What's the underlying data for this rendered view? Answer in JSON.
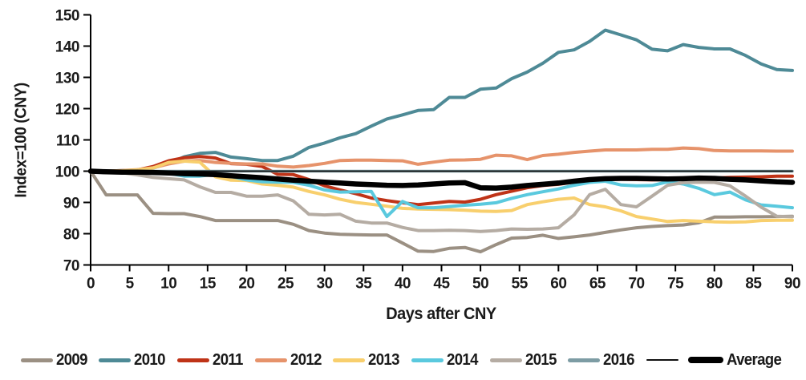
{
  "chart_data": {
    "type": "line",
    "title": "",
    "xlabel": "Days after CNY",
    "ylabel": "Index=100 (CNY)",
    "xlim": [
      0,
      90
    ],
    "ylim": [
      70,
      150
    ],
    "x_ticks": [
      0,
      5,
      10,
      15,
      20,
      25,
      30,
      35,
      40,
      45,
      50,
      55,
      60,
      65,
      70,
      75,
      80,
      85,
      90
    ],
    "y_ticks": [
      70,
      80,
      90,
      100,
      110,
      120,
      130,
      140,
      150
    ],
    "x_day_step": 2,
    "grid": false,
    "legend_position": "bottom",
    "axis_color": "#000000",
    "series": [
      {
        "label": "2009",
        "name": "series-2009",
        "color": "#9b9083",
        "width": 4,
        "values": [
          100,
          92.4,
          92.4,
          92.4,
          86.5,
          86.4,
          86.4,
          85.5,
          84.2,
          84.2,
          84.2,
          84.2,
          84.2,
          83,
          81,
          80.2,
          79.8,
          79.7,
          79.6,
          79.6,
          77,
          74.4,
          74.3,
          75.3,
          75.6,
          74.2,
          76.5,
          78.6,
          78.8,
          79.5,
          78.5,
          79,
          79.6,
          80.4,
          81.2,
          81.9,
          82.3,
          82.6,
          82.8,
          83.5,
          85.3,
          85.3,
          85.4,
          85.4,
          85.5,
          85.6
        ]
      },
      {
        "label": "2010",
        "name": "series-2010",
        "color": "#4e8a96",
        "width": 4,
        "values": [
          100,
          100,
          100.2,
          100.3,
          101,
          102.5,
          104.6,
          105.7,
          106,
          104.5,
          104,
          103.4,
          103.4,
          104.8,
          107.6,
          109,
          110.7,
          112,
          114.4,
          116.7,
          118,
          119.4,
          119.7,
          123.6,
          123.6,
          126.2,
          126.6,
          129.6,
          131.7,
          134.5,
          138,
          138.8,
          141.5,
          145.1,
          143.6,
          142,
          139,
          138.5,
          140.5,
          139.6,
          139.1,
          139.1,
          137,
          134.3,
          132.5,
          132.2
        ]
      },
      {
        "label": "2011",
        "name": "series-2011",
        "color": "#bf3317",
        "width": 4,
        "values": [
          100,
          99.9,
          100,
          100.4,
          101.5,
          103.3,
          104.3,
          104.7,
          104.2,
          102.4,
          102.2,
          101.5,
          99,
          98.9,
          97.3,
          95.3,
          94,
          92.8,
          91.4,
          90.6,
          89.9,
          89.3,
          89.8,
          90.3,
          90.1,
          91,
          92.5,
          93.6,
          94.7,
          95.4,
          95.8,
          96.5,
          97.2,
          97.4,
          97.4,
          97.3,
          97.2,
          97.3,
          97.4,
          97.6,
          97.8,
          98,
          98.1,
          98.2,
          98.4,
          98.4
        ]
      },
      {
        "label": "2012",
        "name": "series-2012",
        "color": "#e6936b",
        "width": 4,
        "values": [
          100,
          100,
          100.2,
          100.5,
          101.1,
          102.3,
          103.2,
          103.4,
          102.8,
          102.5,
          102.3,
          102.3,
          101.6,
          101.3,
          101.8,
          102.5,
          103.4,
          103.5,
          103.5,
          103.4,
          103.3,
          102.2,
          102.9,
          103.5,
          103.6,
          103.8,
          105.1,
          104.9,
          103.7,
          105,
          105.4,
          106,
          106.4,
          106.8,
          106.8,
          106.8,
          107,
          107,
          107.4,
          107.2,
          106.6,
          106.5,
          106.5,
          106.5,
          106.4,
          106.4
        ]
      },
      {
        "label": "2013",
        "name": "series-2013",
        "color": "#f8cf6d",
        "width": 4,
        "values": [
          100,
          100,
          100.1,
          100.4,
          101,
          102.8,
          103.2,
          102.9,
          98.2,
          97.1,
          97,
          95.9,
          95.5,
          94.9,
          93.5,
          92.4,
          91,
          90,
          89.4,
          88.8,
          88.1,
          87.9,
          87.8,
          87.7,
          87.5,
          87.2,
          87.1,
          87.4,
          89.3,
          90.2,
          91,
          91.4,
          89.3,
          88.6,
          87.3,
          85.5,
          84.7,
          83.9,
          84.2,
          84,
          83.8,
          83.7,
          83.8,
          84.2,
          84.3,
          84.3
        ]
      },
      {
        "label": "2014",
        "name": "series-2014",
        "color": "#5ac9de",
        "width": 4,
        "values": [
          100,
          99.9,
          99.8,
          99.7,
          99.6,
          99.3,
          98.4,
          98.4,
          99,
          98.3,
          97.2,
          96.6,
          96.5,
          96.4,
          95.5,
          94,
          93.3,
          93.4,
          93.5,
          85.5,
          90.3,
          88.3,
          88.3,
          88.7,
          89.1,
          89.4,
          89.9,
          91.3,
          92.5,
          93.4,
          94.3,
          95.5,
          96.4,
          96.8,
          95.6,
          95.3,
          95.4,
          96.6,
          95.9,
          94.5,
          92.5,
          93.3,
          90.8,
          89.2,
          88.8,
          88.3
        ]
      },
      {
        "label": "2015",
        "name": "series-2015",
        "color": "#b5aca3",
        "width": 4,
        "values": [
          100,
          99.7,
          99.5,
          98.8,
          98,
          97.6,
          97.2,
          95,
          93.2,
          93.2,
          92,
          92,
          92.4,
          90.5,
          86.2,
          86,
          86.2,
          84,
          83.4,
          83.4,
          82,
          81,
          81,
          81.1,
          81,
          80.7,
          81,
          81.5,
          81.4,
          81.5,
          81.9,
          86,
          92.5,
          94.2,
          89.3,
          88.6,
          92,
          95.5,
          96.3,
          96.5,
          96.4,
          95.3,
          92,
          88.5,
          85.6,
          85.4
        ]
      },
      {
        "label": "2016",
        "name": "series-2016",
        "color": "#7d9ca4",
        "width": 3.5,
        "values": [
          100,
          100,
          100,
          100,
          100,
          100,
          100,
          100,
          100,
          100,
          100,
          100,
          100,
          100,
          100,
          100,
          100,
          100,
          100,
          100,
          100,
          100,
          100,
          100,
          100,
          100,
          100,
          100,
          100,
          100,
          100,
          100,
          100,
          100,
          100,
          100,
          100,
          100,
          100,
          100,
          100,
          100,
          100,
          100,
          100,
          100
        ]
      },
      {
        "label": "",
        "name": "series-reference-100",
        "color": "#111111",
        "width": 1.8,
        "values": [
          100,
          100,
          100,
          100,
          100,
          100,
          100,
          100,
          100,
          100,
          100,
          100,
          100,
          100,
          100,
          100,
          100,
          100,
          100,
          100,
          100,
          100,
          100,
          100,
          100,
          100,
          100,
          100,
          100,
          100,
          100,
          100,
          100,
          100,
          100,
          100,
          100,
          100,
          100,
          100,
          100,
          100,
          100,
          100,
          100,
          100
        ]
      },
      {
        "label": "Average",
        "name": "series-average",
        "color": "#000000",
        "width": 6.5,
        "values": [
          100,
          99.8,
          99.7,
          99.7,
          99.6,
          99.4,
          99.2,
          99.1,
          98.9,
          98.5,
          98.2,
          97.9,
          97.5,
          97.1,
          96.8,
          96.5,
          96.2,
          95.9,
          95.7,
          95.5,
          95.4,
          95.6,
          95.9,
          96.2,
          96.3,
          94.7,
          94.6,
          94.9,
          95.4,
          95.8,
          96.2,
          96.8,
          97.3,
          97.6,
          97.7,
          97.7,
          97.6,
          97.5,
          97.6,
          97.8,
          97.7,
          97.4,
          97.2,
          96.9,
          96.6,
          96.4
        ]
      }
    ]
  }
}
